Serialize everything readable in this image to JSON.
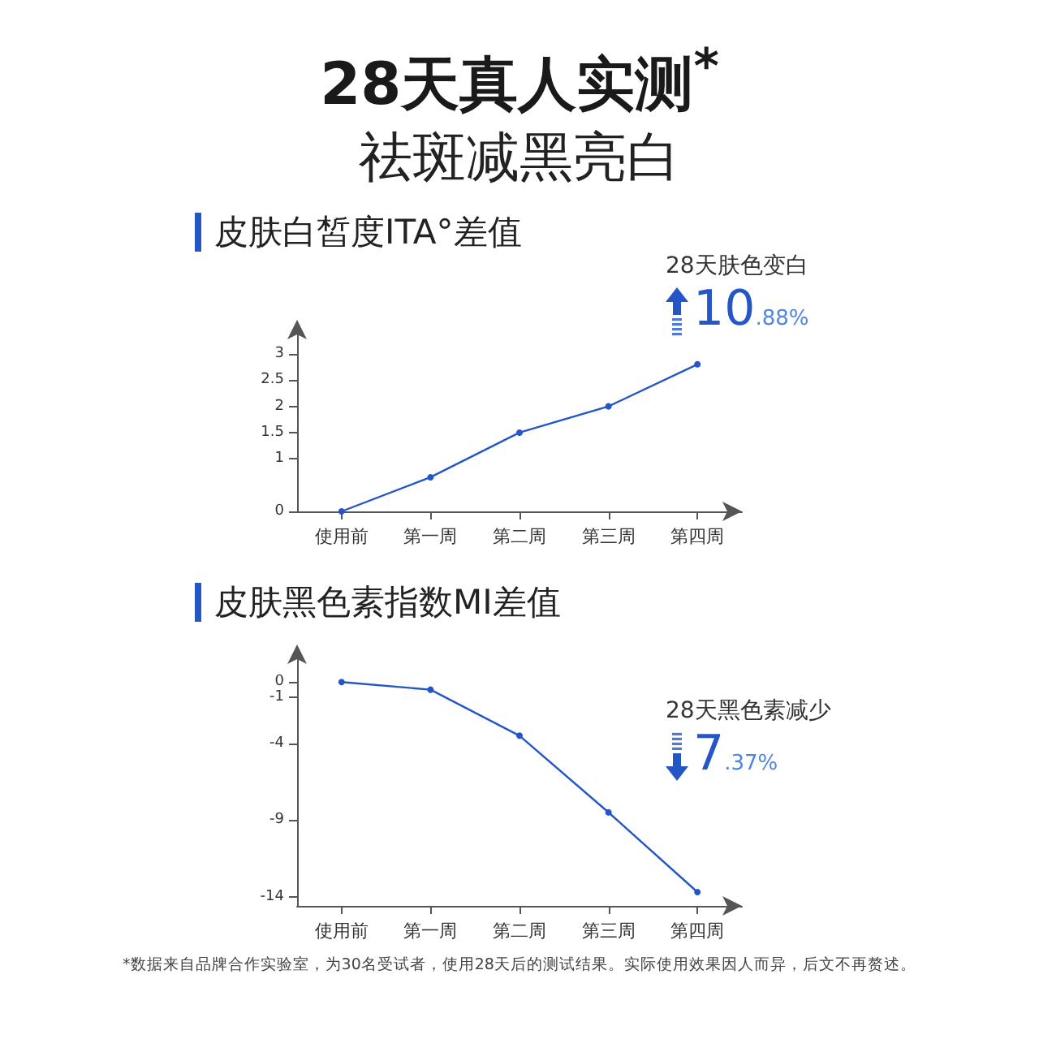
{
  "chart_data": [
    {
      "type": "line",
      "title": "28天真人实测$^{*}$",
      "subtitle": "祛斑减黑亮白",
      "ylabel": "皮肤白皙度ITA°差值",
      "categories": [
        "使用前",
        "第一周",
        "第二周",
        "第三周",
        "第四周"
      ],
      "values": [
        0,
        0.65,
        1.5,
        2,
        2.8
      ],
      "color": "#2556c8",
      "marker": "circle",
      "ylim": [
        0,
        3.4
      ],
      "yticks": [
        0,
        1,
        1.5,
        2,
        2.5,
        3
      ],
      "annotations": [
        "28天肤色变白",
        "10.88%"
      ]
    },
    {
      "type": "line",
      "ylabel": "皮肤黑色素指数MI差值",
      "categories": [
        "使用前",
        "第一周",
        "第二周",
        "第三周",
        "第四周"
      ],
      "values": [
        0,
        -0.5,
        -3.5,
        -8.5,
        -13.7
      ],
      "color": "#2556c8",
      "marker": "circle",
      "ylim": [
        -14.6,
        1.6
      ],
      "yticks": [
        0,
        -1,
        -4,
        -9,
        -14
      ],
      "annotations": [
        "28天黑色素减少",
        "7.37%",
        "*数据来自品牌合作实验室，为30名受试者，使用28天后的测试结果。实际使用效果因人而异，后文不再赘述。"
      ]
    }
  ]
}
